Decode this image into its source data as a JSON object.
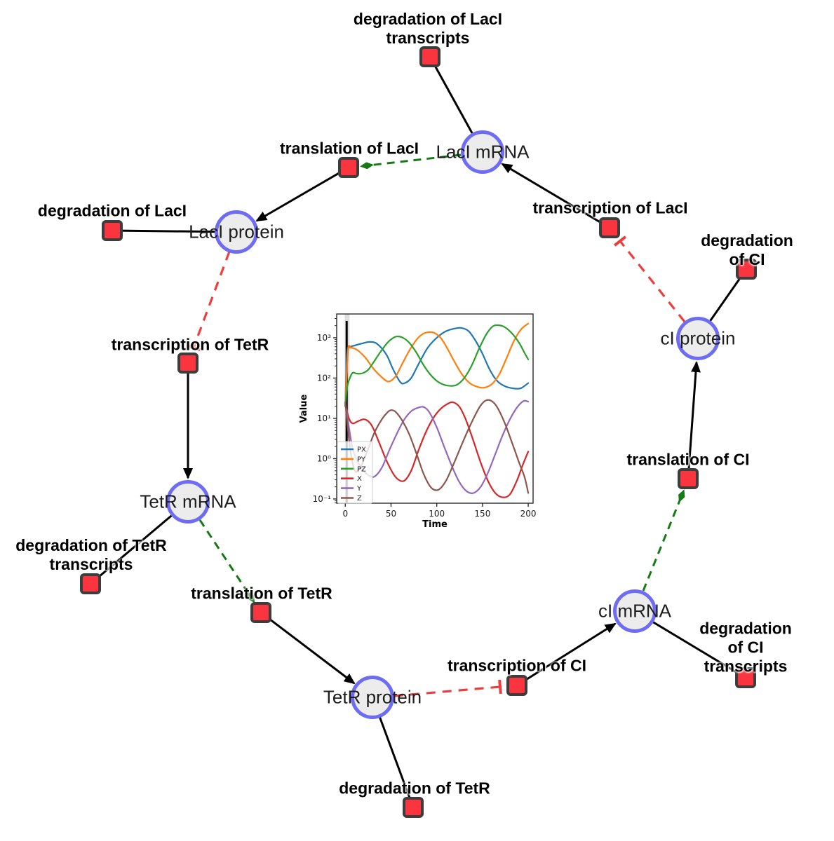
{
  "network": {
    "species": [
      {
        "label": "LacI mRNA"
      },
      {
        "label": "LacI protein"
      },
      {
        "label": "cI protein"
      },
      {
        "label": "TetR mRNA"
      },
      {
        "label": "cI mRNA"
      },
      {
        "label": "TetR protein"
      }
    ],
    "reactions": [
      {
        "label": "degradation of LacI\ntranscripts"
      },
      {
        "label": "translation of LacI"
      },
      {
        "label": "degradation of LacI"
      },
      {
        "label": "transcription of LacI"
      },
      {
        "label": "degradation of CI"
      },
      {
        "label": "transcription of TetR"
      },
      {
        "label": "translation of CI"
      },
      {
        "label": "degradation of TetR\ntranscripts"
      },
      {
        "label": "translation of TetR"
      },
      {
        "label": "transcription of CI"
      },
      {
        "label": "degradation of CI\ntranscripts"
      },
      {
        "label": "degradation of TetR"
      }
    ],
    "colors": {
      "species_fill": "#ececec",
      "species_border": "#6e6cf3",
      "reaction_fill": "#fa353f",
      "reaction_border": "#3d3d3d",
      "edge_black": "#000000",
      "activation_green": "#157a15",
      "inhibition_red": "#ef3d3d"
    }
  },
  "chart_data": {
    "type": "line",
    "title": "",
    "xlabel": "Time",
    "ylabel": "Value",
    "y_scale": "log",
    "xlim": [
      -9.4,
      205.3
    ],
    "ylim_log": [
      -1.105,
      3.59
    ],
    "x_ticks": [
      0,
      50,
      100,
      150,
      200
    ],
    "y_ticks": [
      {
        "label": "10⁻¹",
        "log": -1
      },
      {
        "label": "10⁰",
        "log": 0
      },
      {
        "label": "10¹",
        "log": 1
      },
      {
        "label": "10²",
        "log": 2
      },
      {
        "label": "10³",
        "log": 3
      }
    ],
    "legend_position": "lower left",
    "legend_entries": [
      "PX",
      "PY",
      "PZ",
      "X",
      "Y",
      "Z"
    ],
    "annotations": {
      "vline_x": 1.5,
      "vspan": [
        -0.6,
        4.6
      ]
    },
    "series": [
      {
        "name": "PX",
        "color": "#1f77b4",
        "points": [
          [
            0,
            20
          ],
          [
            2,
            420
          ],
          [
            5,
            580
          ],
          [
            10,
            640
          ],
          [
            18,
            720
          ],
          [
            27,
            790
          ],
          [
            35,
            700
          ],
          [
            45,
            380
          ],
          [
            52,
            170
          ],
          [
            60,
            80
          ],
          [
            65,
            75
          ],
          [
            72,
            100
          ],
          [
            80,
            220
          ],
          [
            90,
            560
          ],
          [
            100,
            1000
          ],
          [
            110,
            1450
          ],
          [
            120,
            1700
          ],
          [
            127,
            1750
          ],
          [
            135,
            1450
          ],
          [
            143,
            800
          ],
          [
            150,
            400
          ],
          [
            158,
            160
          ],
          [
            166,
            85
          ],
          [
            175,
            62
          ],
          [
            185,
            55
          ],
          [
            192,
            56
          ],
          [
            200,
            75
          ]
        ]
      },
      {
        "name": "PY",
        "color": "#ff7f0e",
        "points": [
          [
            0,
            20
          ],
          [
            3,
            480
          ],
          [
            6,
            560
          ],
          [
            10,
            540
          ],
          [
            15,
            460
          ],
          [
            22,
            320
          ],
          [
            30,
            180
          ],
          [
            38,
            115
          ],
          [
            47,
            82
          ],
          [
            55,
            110
          ],
          [
            62,
            220
          ],
          [
            70,
            480
          ],
          [
            78,
            900
          ],
          [
            85,
            1250
          ],
          [
            92,
            1380
          ],
          [
            98,
            1300
          ],
          [
            105,
            950
          ],
          [
            112,
            520
          ],
          [
            120,
            240
          ],
          [
            128,
            120
          ],
          [
            136,
            75
          ],
          [
            145,
            60
          ],
          [
            152,
            58
          ],
          [
            160,
            70
          ],
          [
            168,
            120
          ],
          [
            176,
            300
          ],
          [
            184,
            800
          ],
          [
            192,
            1600
          ],
          [
            200,
            2250
          ]
        ]
      },
      {
        "name": "PZ",
        "color": "#2ca02c",
        "points": [
          [
            0,
            20
          ],
          [
            2,
            60
          ],
          [
            5,
            100
          ],
          [
            8,
            135
          ],
          [
            12,
            130
          ],
          [
            16,
            128
          ],
          [
            20,
            135
          ],
          [
            25,
            160
          ],
          [
            30,
            230
          ],
          [
            38,
            430
          ],
          [
            46,
            750
          ],
          [
            52,
            980
          ],
          [
            57,
            1080
          ],
          [
            63,
            1000
          ],
          [
            70,
            750
          ],
          [
            78,
            420
          ],
          [
            85,
            220
          ],
          [
            92,
            130
          ],
          [
            100,
            85
          ],
          [
            108,
            68
          ],
          [
            115,
            64
          ],
          [
            122,
            68
          ],
          [
            130,
            100
          ],
          [
            138,
            200
          ],
          [
            146,
            520
          ],
          [
            154,
            1200
          ],
          [
            161,
            1900
          ],
          [
            167,
            2050
          ],
          [
            174,
            1850
          ],
          [
            182,
            1300
          ],
          [
            190,
            750
          ],
          [
            196,
            420
          ],
          [
            200,
            290
          ]
        ]
      },
      {
        "name": "X",
        "color": "#d62728",
        "points": [
          [
            0,
            22
          ],
          [
            4,
            10
          ],
          [
            8,
            7.5
          ],
          [
            14,
            8.5
          ],
          [
            20,
            9.5
          ],
          [
            25,
            8.5
          ],
          [
            30,
            6
          ],
          [
            38,
            2.2
          ],
          [
            46,
            0.8
          ],
          [
            55,
            0.35
          ],
          [
            64,
            0.28
          ],
          [
            72,
            0.5
          ],
          [
            80,
            1.6
          ],
          [
            88,
            4.5
          ],
          [
            96,
            10
          ],
          [
            104,
            17
          ],
          [
            112,
            23
          ],
          [
            118,
            25
          ],
          [
            125,
            19
          ],
          [
            132,
            9
          ],
          [
            140,
            2.8
          ],
          [
            148,
            0.8
          ],
          [
            156,
            0.28
          ],
          [
            164,
            0.14
          ],
          [
            172,
            0.11
          ],
          [
            180,
            0.13
          ],
          [
            188,
            0.3
          ],
          [
            194,
            0.7
          ],
          [
            200,
            1.5
          ]
        ]
      },
      {
        "name": "Y",
        "color": "#9467bd",
        "points": [
          [
            0,
            25
          ],
          [
            4,
            6
          ],
          [
            8,
            1.8
          ],
          [
            14,
            0.8
          ],
          [
            20,
            0.5
          ],
          [
            26,
            0.38
          ],
          [
            32,
            0.36
          ],
          [
            40,
            0.6
          ],
          [
            48,
            1.6
          ],
          [
            56,
            4
          ],
          [
            64,
            9
          ],
          [
            72,
            15
          ],
          [
            80,
            18.5
          ],
          [
            86,
            19
          ],
          [
            92,
            14
          ],
          [
            100,
            6
          ],
          [
            108,
            2
          ],
          [
            116,
            0.7
          ],
          [
            124,
            0.28
          ],
          [
            132,
            0.16
          ],
          [
            140,
            0.14
          ],
          [
            148,
            0.2
          ],
          [
            156,
            0.45
          ],
          [
            164,
            1.3
          ],
          [
            172,
            3.8
          ],
          [
            180,
            9.5
          ],
          [
            188,
            19
          ],
          [
            195,
            27
          ],
          [
            200,
            26
          ]
        ]
      },
      {
        "name": "Z",
        "color": "#8c564b",
        "points": [
          [
            0,
            25
          ],
          [
            3,
            5
          ],
          [
            7,
            1
          ],
          [
            11,
            0.48
          ],
          [
            15,
            0.55
          ],
          [
            20,
            0.9
          ],
          [
            26,
            2
          ],
          [
            32,
            4.5
          ],
          [
            40,
            9.5
          ],
          [
            46,
            14
          ],
          [
            50,
            16
          ],
          [
            55,
            14.5
          ],
          [
            62,
            9
          ],
          [
            70,
            4
          ],
          [
            78,
            1.3
          ],
          [
            86,
            0.4
          ],
          [
            94,
            0.19
          ],
          [
            102,
            0.17
          ],
          [
            110,
            0.28
          ],
          [
            118,
            0.7
          ],
          [
            126,
            1.9
          ],
          [
            134,
            5
          ],
          [
            142,
            12
          ],
          [
            148,
            21
          ],
          [
            154,
            28
          ],
          [
            160,
            27
          ],
          [
            166,
            19
          ],
          [
            174,
            8
          ],
          [
            182,
            2.6
          ],
          [
            190,
            0.8
          ],
          [
            196,
            0.35
          ],
          [
            200,
            0.14
          ]
        ]
      }
    ]
  }
}
